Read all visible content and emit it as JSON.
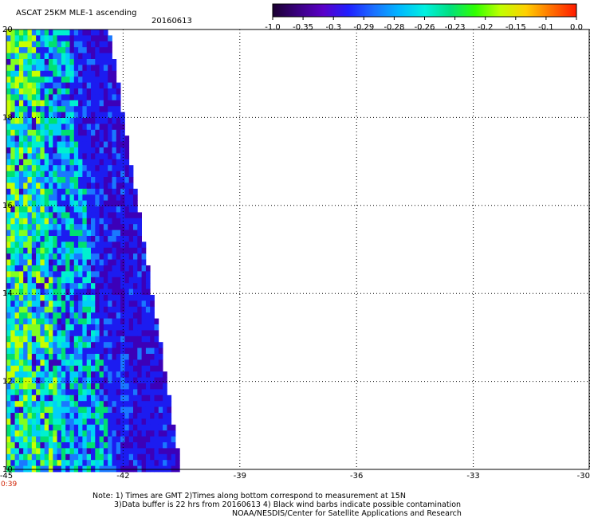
{
  "header": {
    "title": "ASCAT 25KM MLE-1 ascending",
    "date": "20160613"
  },
  "colorbar": {
    "tick_labels": [
      "-1.0",
      "-0.35",
      "-0.3",
      "-0.29",
      "-0.28",
      "-0.26",
      "-0.23",
      "-0.2",
      "-0.15",
      "-0.1",
      "0.0"
    ],
    "colors": [
      "#1a0030",
      "#3a0080",
      "#5a00c8",
      "#2020ff",
      "#1a70ff",
      "#00b8ff",
      "#00f0e0",
      "#00e080",
      "#30ff00",
      "#c0ff00",
      "#ffd000",
      "#ff7000",
      "#ff1a00"
    ]
  },
  "axes": {
    "x_ticks": [
      "-45",
      "-42",
      "-39",
      "-36",
      "-33",
      "-30"
    ],
    "y_ticks": [
      "20",
      "18",
      "16",
      "14",
      "12",
      "10"
    ],
    "time_label": "0:39",
    "time_color": "#d02000"
  },
  "swath_colors": {
    "purple": "#3c00b8",
    "blue": "#1c1cf0",
    "light_blue": "#1a78ff",
    "cyan": "#00d0f8",
    "aqua": "#00f0d0",
    "green": "#00e070",
    "lime": "#80ff20",
    "yellow_green": "#c8ff00"
  },
  "notes": {
    "line1": "Note: 1) Times are GMT 2)Times along bottom correspond to measurement at 15N",
    "line2": "3)Data buffer is 22 hrs from 20160613 4) Black wind barbs indicate possible contamination",
    "line3": "NOAA/NESDIS/Center for Satellite Applications and Research"
  }
}
